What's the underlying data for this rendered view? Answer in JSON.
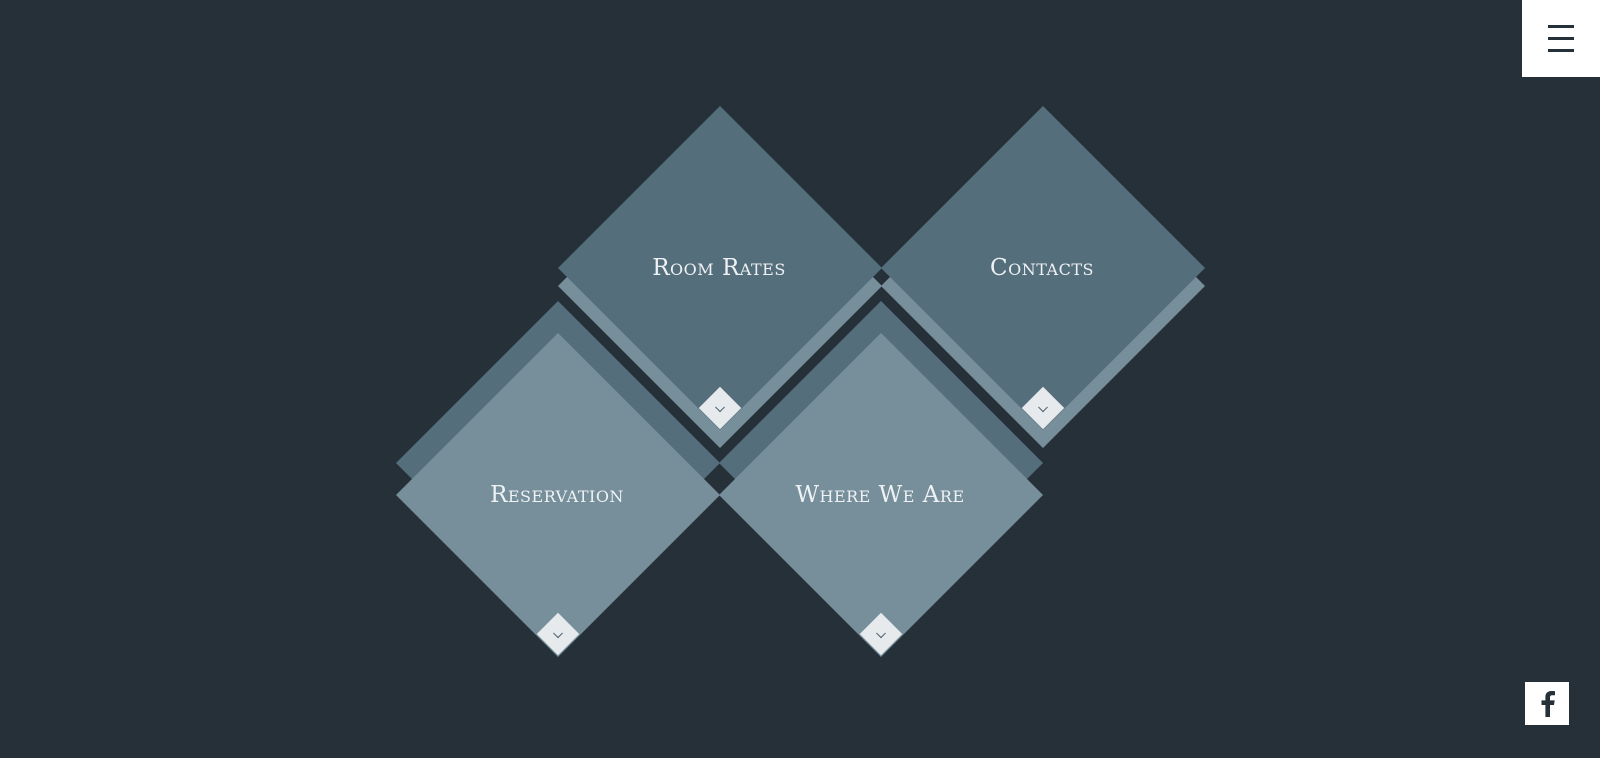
{
  "colors": {
    "background": "#263039",
    "tile_dark": "#556e7b",
    "tile_light": "#768f9b",
    "chevron_bg": "#e6eaec",
    "label": "#eef2f4"
  },
  "header": {
    "menu_icon": "hamburger-icon"
  },
  "tiles": [
    {
      "label": "Room Rates",
      "icon": "chevron-down-icon"
    },
    {
      "label": "Contacts",
      "icon": "chevron-down-icon"
    },
    {
      "label": "Reservation",
      "icon": "chevron-down-icon"
    },
    {
      "label": "Where We Are",
      "icon": "chevron-down-icon"
    }
  ],
  "footer": {
    "social_icon": "facebook-icon"
  }
}
